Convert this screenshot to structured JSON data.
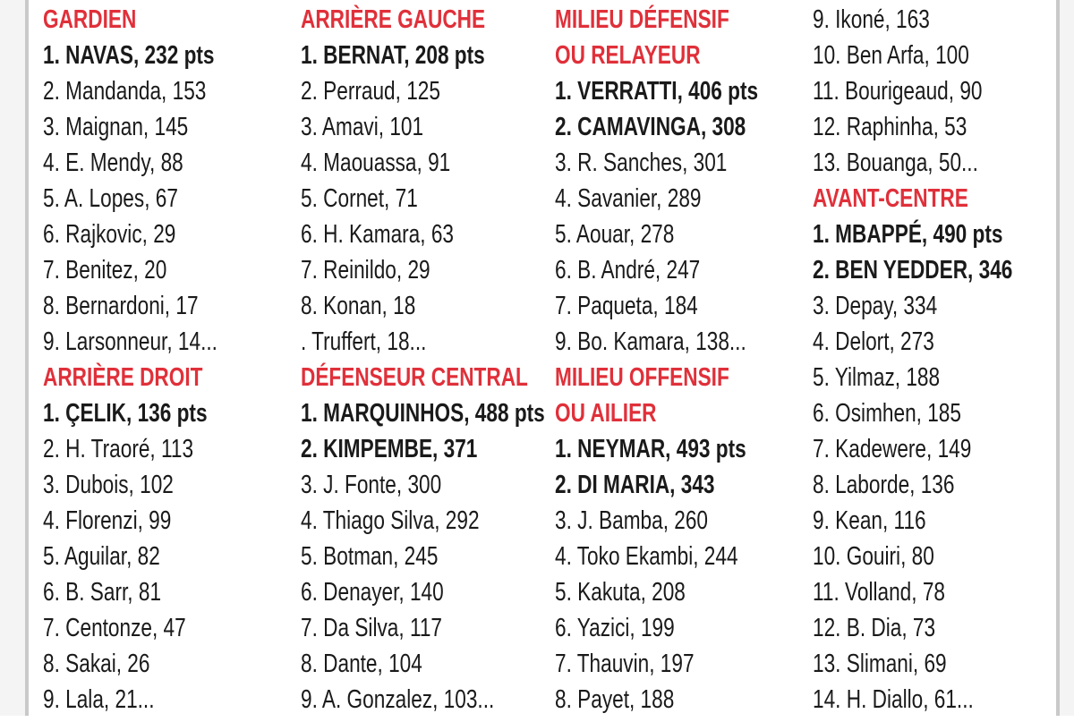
{
  "accent_color": "#e0303a",
  "columns": [
    {
      "sections": [
        {
          "heading": [
            "GARDIEN"
          ],
          "entries": [
            {
              "text": "1. NAVAS, 232 pts",
              "bold": true
            },
            {
              "text": "2. Mandanda, 153",
              "bold": false
            },
            {
              "text": "3. Maignan, 145",
              "bold": false
            },
            {
              "text": "4. E. Mendy, 88",
              "bold": false
            },
            {
              "text": "5. A. Lopes, 67",
              "bold": false
            },
            {
              "text": "6. Rajkovic, 29",
              "bold": false
            },
            {
              "text": "7. Benitez, 20",
              "bold": false
            },
            {
              "text": "8. Bernardoni, 17",
              "bold": false
            },
            {
              "text": "9. Larsonneur, 14...",
              "bold": false
            }
          ]
        },
        {
          "heading": [
            "ARRIÈRE DROIT"
          ],
          "entries": [
            {
              "text": "1. ÇELIK, 136 pts",
              "bold": true
            },
            {
              "text": "2. H. Traoré, 113",
              "bold": false
            },
            {
              "text": "3. Dubois, 102",
              "bold": false
            },
            {
              "text": "4. Florenzi, 99",
              "bold": false
            },
            {
              "text": "5. Aguilar, 82",
              "bold": false
            },
            {
              "text": "6. B. Sarr, 81",
              "bold": false
            },
            {
              "text": "7. Centonze, 47",
              "bold": false
            },
            {
              "text": "8. Sakai, 26",
              "bold": false
            },
            {
              "text": "9. Lala, 21...",
              "bold": false
            }
          ]
        }
      ]
    },
    {
      "sections": [
        {
          "heading": [
            "ARRIÈRE GAUCHE"
          ],
          "entries": [
            {
              "text": "1. BERNAT, 208 pts",
              "bold": true
            },
            {
              "text": "2. Perraud, 125",
              "bold": false
            },
            {
              "text": "3. Amavi, 101",
              "bold": false
            },
            {
              "text": "4. Maouassa, 91",
              "bold": false
            },
            {
              "text": "5. Cornet, 71",
              "bold": false
            },
            {
              "text": "6. H. Kamara, 63",
              "bold": false
            },
            {
              "text": "7. Reinildo, 29",
              "bold": false
            },
            {
              "text": "8. Konan, 18",
              "bold": false
            },
            {
              "text": ". Truffert, 18...",
              "bold": false
            }
          ]
        },
        {
          "heading": [
            "DÉFENSEUR CENTRAL"
          ],
          "entries": [
            {
              "text": "1. MARQUINHOS, 488 pts",
              "bold": true
            },
            {
              "text": "2. KIMPEMBE, 371",
              "bold": true
            },
            {
              "text": "3. J. Fonte, 300",
              "bold": false
            },
            {
              "text": "4. Thiago Silva, 292",
              "bold": false
            },
            {
              "text": "5. Botman, 245",
              "bold": false
            },
            {
              "text": "6. Denayer, 140",
              "bold": false
            },
            {
              "text": "7. Da Silva, 117",
              "bold": false
            },
            {
              "text": "8. Dante, 104",
              "bold": false
            },
            {
              "text": "9. A. Gonzalez, 103...",
              "bold": false
            }
          ]
        }
      ]
    },
    {
      "sections": [
        {
          "heading": [
            "MILIEU DÉFENSIF",
            "OU RELAYEUR"
          ],
          "entries": [
            {
              "text": "1. VERRATTI, 406 pts",
              "bold": true
            },
            {
              "text": "2. CAMAVINGA, 308",
              "bold": true
            },
            {
              "text": "3. R. Sanches, 301",
              "bold": false
            },
            {
              "text": "4. Savanier, 289",
              "bold": false
            },
            {
              "text": "5. Aouar, 278",
              "bold": false
            },
            {
              "text": "6. B. André, 247",
              "bold": false
            },
            {
              "text": "7. Paqueta, 184",
              "bold": false
            },
            {
              "text": "9. Bo. Kamara, 138...",
              "bold": false
            }
          ]
        },
        {
          "heading": [
            "MILIEU OFFENSIF",
            "OU AILIER"
          ],
          "entries": [
            {
              "text": "1. NEYMAR, 493 pts",
              "bold": true
            },
            {
              "text": "2. DI MARIA, 343",
              "bold": true
            },
            {
              "text": "3. J. Bamba, 260",
              "bold": false
            },
            {
              "text": "4. Toko Ekambi, 244",
              "bold": false
            },
            {
              "text": "5. Kakuta, 208",
              "bold": false
            },
            {
              "text": "6. Yazici, 199",
              "bold": false
            },
            {
              "text": "7. Thauvin, 197",
              "bold": false
            },
            {
              "text": "8. Payet, 188",
              "bold": false
            }
          ]
        }
      ]
    },
    {
      "sections": [
        {
          "heading": [],
          "entries": [
            {
              "text": "9. Ikoné, 163",
              "bold": false
            },
            {
              "text": "10.  Ben Arfa, 100",
              "bold": false
            },
            {
              "text": "11. Bourigeaud, 90",
              "bold": false
            },
            {
              "text": "12. Raphinha, 53",
              "bold": false
            },
            {
              "text": "13. Bouanga, 50...",
              "bold": false
            }
          ]
        },
        {
          "heading": [
            "AVANT-CENTRE"
          ],
          "entries": [
            {
              "text": "1. MBAPPÉ, 490 pts",
              "bold": true
            },
            {
              "text": "2. BEN YEDDER, 346",
              "bold": true
            },
            {
              "text": "3. Depay, 334",
              "bold": false
            },
            {
              "text": "4. Delort, 273",
              "bold": false
            },
            {
              "text": "5. Yilmaz, 188",
              "bold": false
            },
            {
              "text": "6. Osimhen, 185",
              "bold": false
            },
            {
              "text": "7. Kadewere, 149",
              "bold": false
            },
            {
              "text": "8. Laborde, 136",
              "bold": false
            },
            {
              "text": "9. Kean, 116",
              "bold": false
            },
            {
              "text": "10. Gouiri, 80",
              "bold": false
            },
            {
              "text": "11. Volland, 78",
              "bold": false
            },
            {
              "text": "12. B. Dia, 73",
              "bold": false
            },
            {
              "text": "13. Slimani, 69",
              "bold": false
            },
            {
              "text": "14. H. Diallo, 61...",
              "bold": false
            }
          ]
        }
      ]
    }
  ]
}
